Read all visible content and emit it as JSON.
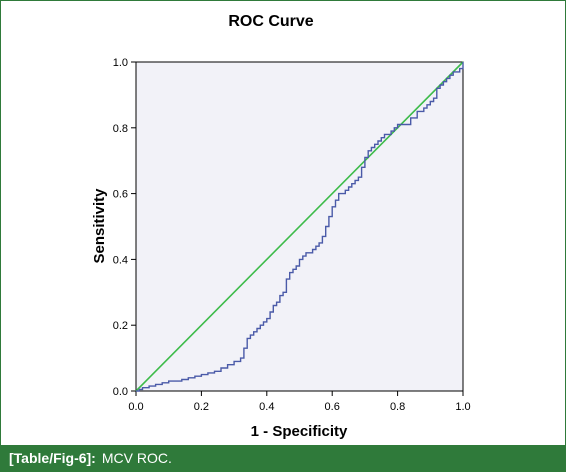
{
  "chart_data": {
    "type": "line",
    "title": "ROC Curve",
    "xlabel": "1 - Specificity",
    "ylabel": "Sensitivity",
    "xlim": [
      0,
      1
    ],
    "ylim": [
      0,
      1
    ],
    "xticks": [
      "0.0",
      "0.2",
      "0.4",
      "0.6",
      "0.8",
      "1.0"
    ],
    "yticks": [
      "0.0",
      "0.2",
      "0.4",
      "0.6",
      "0.8",
      "1.0"
    ],
    "grid": false,
    "series": [
      {
        "color": "#4a5aa8",
        "step": true,
        "x": [
          0.0,
          0.01,
          0.02,
          0.04,
          0.06,
          0.08,
          0.1,
          0.12,
          0.14,
          0.16,
          0.18,
          0.2,
          0.22,
          0.24,
          0.26,
          0.28,
          0.3,
          0.32,
          0.33,
          0.34,
          0.35,
          0.36,
          0.37,
          0.38,
          0.39,
          0.4,
          0.41,
          0.42,
          0.43,
          0.44,
          0.45,
          0.46,
          0.47,
          0.48,
          0.49,
          0.5,
          0.51,
          0.52,
          0.53,
          0.54,
          0.55,
          0.56,
          0.57,
          0.58,
          0.59,
          0.6,
          0.61,
          0.62,
          0.63,
          0.64,
          0.65,
          0.66,
          0.67,
          0.68,
          0.69,
          0.7,
          0.71,
          0.72,
          0.73,
          0.74,
          0.75,
          0.76,
          0.77,
          0.78,
          0.79,
          0.8,
          0.82,
          0.84,
          0.86,
          0.88,
          0.89,
          0.9,
          0.91,
          0.92,
          0.93,
          0.94,
          0.95,
          0.96,
          0.97,
          0.98,
          0.99,
          1.0
        ],
        "y": [
          0.0,
          0.005,
          0.01,
          0.015,
          0.02,
          0.025,
          0.03,
          0.03,
          0.035,
          0.04,
          0.045,
          0.05,
          0.055,
          0.06,
          0.07,
          0.08,
          0.09,
          0.1,
          0.13,
          0.16,
          0.17,
          0.18,
          0.19,
          0.2,
          0.21,
          0.22,
          0.24,
          0.26,
          0.27,
          0.29,
          0.3,
          0.34,
          0.36,
          0.37,
          0.38,
          0.4,
          0.41,
          0.42,
          0.42,
          0.43,
          0.44,
          0.45,
          0.47,
          0.5,
          0.53,
          0.56,
          0.58,
          0.6,
          0.6,
          0.61,
          0.62,
          0.63,
          0.64,
          0.65,
          0.68,
          0.71,
          0.73,
          0.74,
          0.75,
          0.76,
          0.77,
          0.78,
          0.78,
          0.79,
          0.8,
          0.81,
          0.81,
          0.83,
          0.85,
          0.86,
          0.87,
          0.88,
          0.89,
          0.92,
          0.93,
          0.94,
          0.95,
          0.96,
          0.97,
          0.97,
          0.98,
          1.0
        ]
      },
      {
        "color": "#3dbb4a",
        "x": [
          0,
          1
        ],
        "y": [
          0,
          1
        ]
      }
    ]
  },
  "caption": {
    "ref": "[Table/Fig-6]:",
    "text": "MCV ROC."
  },
  "colors": {
    "plot_background": "#f2f2f8",
    "curve": "#4a5aa8",
    "reference_line": "#3dbb4a",
    "caption_background": "#2f7a3a"
  }
}
